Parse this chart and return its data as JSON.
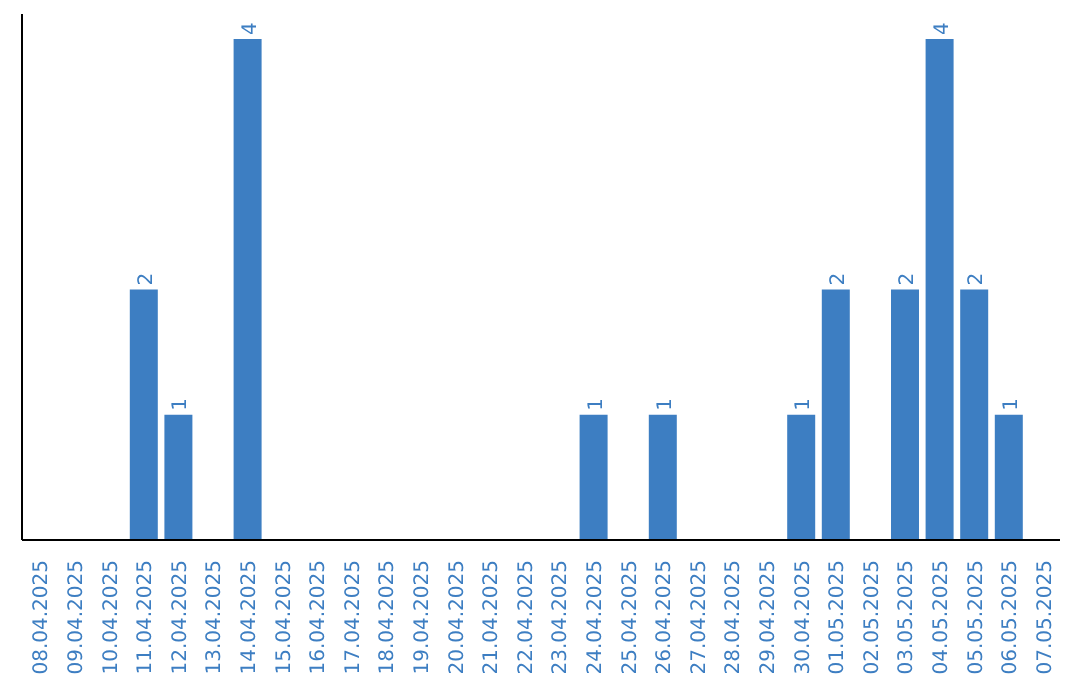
{
  "chart_data": {
    "type": "bar",
    "categories": [
      "08.04.2025",
      "09.04.2025",
      "10.04.2025",
      "11.04.2025",
      "12.04.2025",
      "13.04.2025",
      "14.04.2025",
      "15.04.2025",
      "16.04.2025",
      "17.04.2025",
      "18.04.2025",
      "19.04.2025",
      "20.04.2025",
      "21.04.2025",
      "22.04.2025",
      "23.04.2025",
      "24.04.2025",
      "25.04.2025",
      "26.04.2025",
      "27.04.2025",
      "28.04.2025",
      "29.04.2025",
      "30.04.2025",
      "01.05.2025",
      "02.05.2025",
      "03.05.2025",
      "04.05.2025",
      "05.05.2025",
      "06.05.2025",
      "07.05.2025"
    ],
    "values": [
      0,
      0,
      0,
      2,
      1,
      0,
      4,
      0,
      0,
      0,
      0,
      0,
      0,
      0,
      0,
      0,
      1,
      0,
      1,
      0,
      0,
      0,
      1,
      2,
      0,
      2,
      4,
      2,
      1,
      0
    ],
    "value_labels": [
      null,
      null,
      null,
      "2",
      "1",
      null,
      "4",
      null,
      null,
      null,
      null,
      null,
      null,
      null,
      null,
      null,
      "1",
      null,
      "1",
      null,
      null,
      null,
      "1",
      "2",
      null,
      "2",
      "4",
      "2",
      "1",
      null
    ],
    "color": "#3d7ec2",
    "ylim": [
      0,
      4.2
    ],
    "tick_labels": "x"
  }
}
